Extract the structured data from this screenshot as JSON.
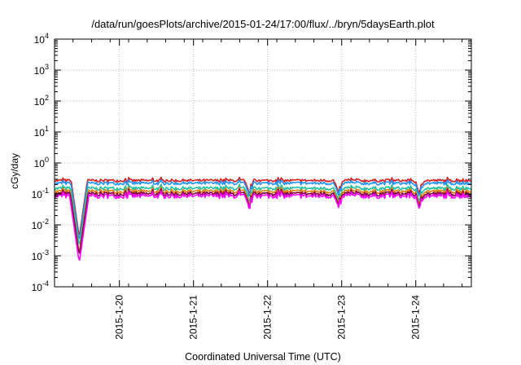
{
  "chart_data": {
    "type": "line",
    "title": "/data/run/goesPlots/archive/2015-01-24/17:00/flux/../bryn/5daysEarth.plot",
    "xlabel": "Coordinated Universal Time (UTC)",
    "ylabel": "cGy/day",
    "yscale": "log",
    "ylim": [
      0.0001,
      10000
    ],
    "yticks": [
      {
        "value": 0.0001,
        "base": "10",
        "exp": "-4"
      },
      {
        "value": 0.001,
        "base": "10",
        "exp": "-3"
      },
      {
        "value": 0.01,
        "base": "10",
        "exp": "-2"
      },
      {
        "value": 0.1,
        "base": "10",
        "exp": "-1"
      },
      {
        "value": 1,
        "base": "10",
        "exp": "0"
      },
      {
        "value": 10,
        "base": "10",
        "exp": "1"
      },
      {
        "value": 100,
        "base": "10",
        "exp": "2"
      },
      {
        "value": 1000,
        "base": "10",
        "exp": "3"
      },
      {
        "value": 10000,
        "base": "10",
        "exp": "4"
      }
    ],
    "xlim": [
      "2015-01-19 03:00",
      "2015-01-24 18:00"
    ],
    "xticks": [
      "2015-1-20",
      "2015-1-21",
      "2015-1-22",
      "2015-1-23",
      "2015-1-24"
    ],
    "grid": true,
    "legend": "none",
    "series": [
      {
        "color": "#d62020",
        "level": 0.27,
        "dip_min": 0.004
      },
      {
        "color": "#1e90ff",
        "level": 0.22,
        "dip_min": 0.003
      },
      {
        "color": "#20c0a0",
        "level": 0.15,
        "dip_min": 0.002
      },
      {
        "color": "#e08010",
        "level": 0.12,
        "dip_min": 0.0012
      },
      {
        "color": "#800040",
        "level": 0.1,
        "dip_min": 0.001
      },
      {
        "color": "#ff00ff",
        "level": 0.085,
        "dip_min": 0.0006
      }
    ],
    "events": [
      {
        "time": "2015-01-19 11:00",
        "note": "deep dip to ~6e-4"
      },
      {
        "time": "2015-01-21 18:00",
        "note": "dip to ~0.05"
      },
      {
        "time": "2015-01-22 23:00",
        "note": "dip to ~0.04"
      },
      {
        "time": "2015-01-24 01:00",
        "note": "dip to ~0.03"
      }
    ]
  }
}
